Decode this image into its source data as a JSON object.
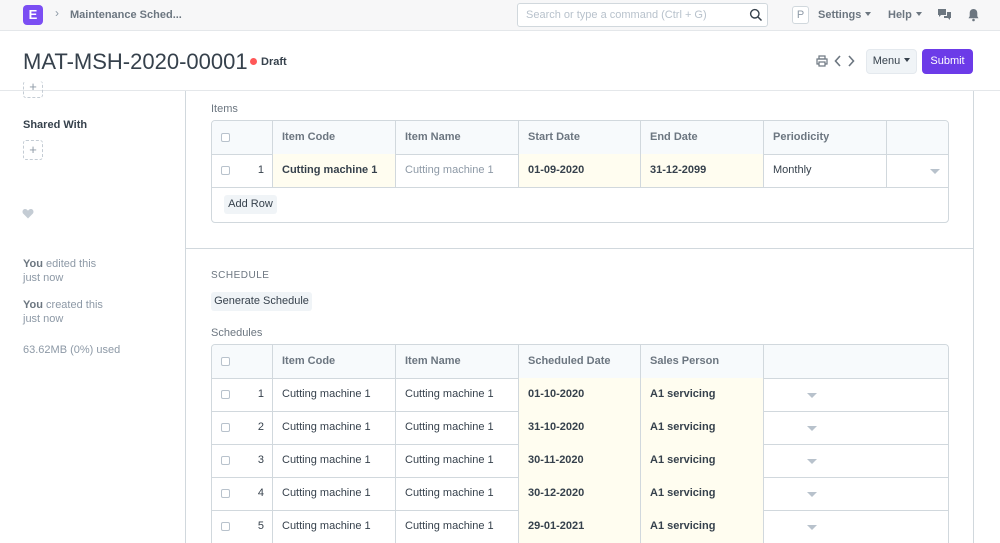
{
  "navbar": {
    "logo_letter": "E",
    "breadcrumb": "Maintenance Sched...",
    "search_placeholder": "Search or type a command (Ctrl + G)",
    "avatar_letter": "P",
    "settings_label": "Settings",
    "help_label": "Help"
  },
  "header": {
    "title": "MAT-MSH-2020-00001",
    "status": "Draft",
    "menu_label": "Menu",
    "submit_label": "Submit"
  },
  "sidebar": {
    "shared_with_label": "Shared With",
    "activity": [
      {
        "who": "You",
        "what": "edited this",
        "when": "just now"
      },
      {
        "who": "You",
        "what": "created this",
        "when": "just now"
      }
    ],
    "usage": "63.62MB (0%) used"
  },
  "items": {
    "label": "Items",
    "headers": [
      "Item Code",
      "Item Name",
      "Start Date",
      "End Date",
      "Periodicity"
    ],
    "rows": [
      {
        "idx": "1",
        "item_code": "Cutting machine 1",
        "item_name": "Cutting machine 1",
        "start_date": "01-09-2020",
        "end_date": "31-12-2099",
        "periodicity": "Monthly"
      }
    ],
    "add_row_label": "Add Row"
  },
  "schedule": {
    "section_label": "SCHEDULE",
    "generate_label": "Generate Schedule",
    "schedules_label": "Schedules",
    "headers": [
      "Item Code",
      "Item Name",
      "Scheduled Date",
      "Sales Person"
    ],
    "rows": [
      {
        "idx": "1",
        "item_code": "Cutting machine 1",
        "item_name": "Cutting machine 1",
        "scheduled_date": "01-10-2020",
        "sales_person": "A1 servicing"
      },
      {
        "idx": "2",
        "item_code": "Cutting machine 1",
        "item_name": "Cutting machine 1",
        "scheduled_date": "31-10-2020",
        "sales_person": "A1 servicing"
      },
      {
        "idx": "3",
        "item_code": "Cutting machine 1",
        "item_name": "Cutting machine 1",
        "scheduled_date": "30-11-2020",
        "sales_person": "A1 servicing"
      },
      {
        "idx": "4",
        "item_code": "Cutting machine 1",
        "item_name": "Cutting machine 1",
        "scheduled_date": "30-12-2020",
        "sales_person": "A1 servicing"
      },
      {
        "idx": "5",
        "item_code": "Cutting machine 1",
        "item_name": "Cutting machine 1",
        "scheduled_date": "29-01-2021",
        "sales_person": "A1 servicing"
      }
    ]
  },
  "colors": {
    "brand": "#7b4ef3",
    "primary_button": "#6c3be8",
    "draft_indicator": "#ff5858",
    "editable_cell": "#fffdf0"
  },
  "icons": [
    "search-icon",
    "notifications-icon",
    "bell-icon",
    "print-icon",
    "prev-icon",
    "next-icon",
    "heart-icon",
    "add-icon",
    "dropdown-icon"
  ]
}
